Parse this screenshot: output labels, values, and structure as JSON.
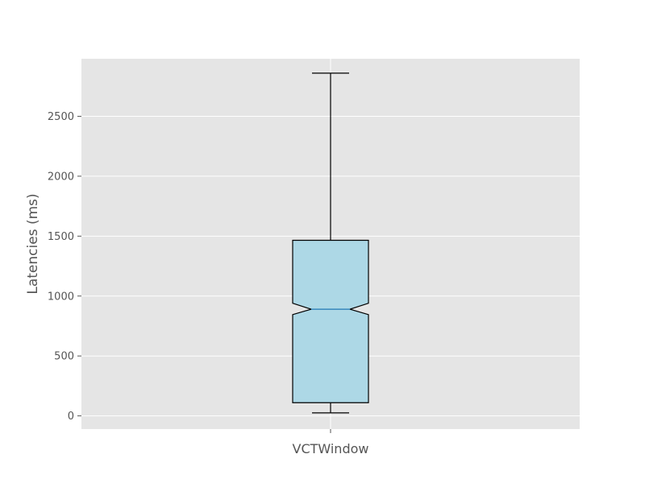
{
  "chart_data": {
    "type": "box",
    "title": "",
    "xlabel": "",
    "ylabel": "Latencies (ms)",
    "categories": [
      "VCTWindow"
    ],
    "notched": true,
    "boxes": [
      {
        "category": "VCTWindow",
        "whisker_low": 25,
        "q1": 110,
        "median": 890,
        "q3": 1465,
        "whisker_high": 2860,
        "notch_low": 845,
        "notch_high": 940
      }
    ],
    "yticks": [
      0,
      500,
      1000,
      1500,
      2000,
      2500
    ],
    "ytick_labels": [
      "0",
      "500",
      "1000",
      "1500",
      "2000",
      "2500"
    ],
    "ylim": [
      -110,
      2980
    ],
    "grid": true,
    "legend": "none"
  },
  "colors": {
    "plot_background": "#e5e5e5",
    "grid": "#ffffff",
    "box_fill": "#add8e6",
    "box_edge": "#000000",
    "median_line": "#1f77b4",
    "text": "#555555"
  }
}
